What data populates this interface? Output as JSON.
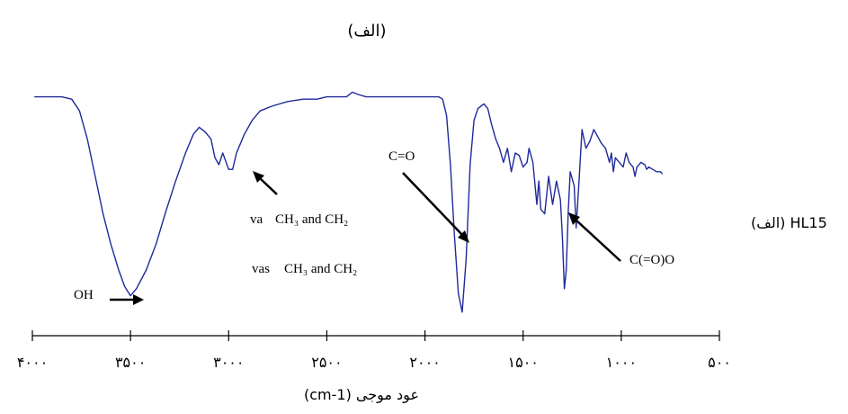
{
  "chart_data": {
    "type": "line",
    "title": "(الف)",
    "side_label": "(الف) HL15",
    "xlabel": "عود موجی (cm-1)",
    "x_ticks": [
      4000,
      3500,
      3000,
      2500,
      2000,
      1500,
      1000,
      500
    ],
    "x_tick_labels": [
      "۴۰۰۰",
      "۳۵۰۰",
      "۳۰۰۰",
      "۲۵۰۰",
      "۲۰۰۰",
      "۱۵۰۰",
      "۱۰۰۰",
      "۵۰۰"
    ],
    "xlim": [
      4000,
      500
    ],
    "x_reversed": true,
    "ylim": [
      0,
      100
    ],
    "y_axis_shown": false,
    "grid": false,
    "line_color": "#1f2a9a",
    "series": [
      {
        "name": "",
        "points": [
          [
            3990,
            94
          ],
          [
            3900,
            94
          ],
          [
            3850,
            94
          ],
          [
            3800,
            93
          ],
          [
            3760,
            88
          ],
          [
            3720,
            76
          ],
          [
            3680,
            60
          ],
          [
            3640,
            44
          ],
          [
            3600,
            31
          ],
          [
            3560,
            20
          ],
          [
            3530,
            13
          ],
          [
            3500,
            9
          ],
          [
            3470,
            12
          ],
          [
            3420,
            20
          ],
          [
            3370,
            31
          ],
          [
            3320,
            45
          ],
          [
            3270,
            58
          ],
          [
            3220,
            70
          ],
          [
            3180,
            78
          ],
          [
            3150,
            81
          ],
          [
            3120,
            79
          ],
          [
            3090,
            76
          ],
          [
            3070,
            68
          ],
          [
            3050,
            65
          ],
          [
            3030,
            70
          ],
          [
            3000,
            63
          ],
          [
            2980,
            63
          ],
          [
            2960,
            70
          ],
          [
            2920,
            78
          ],
          [
            2880,
            84
          ],
          [
            2840,
            88
          ],
          [
            2780,
            90
          ],
          [
            2700,
            92
          ],
          [
            2620,
            93
          ],
          [
            2550,
            93
          ],
          [
            2500,
            94
          ],
          [
            2440,
            94
          ],
          [
            2400,
            94
          ],
          [
            2370,
            96
          ],
          [
            2340,
            95
          ],
          [
            2300,
            94
          ],
          [
            2200,
            94
          ],
          [
            2100,
            94
          ],
          [
            2000,
            94
          ],
          [
            1930,
            94
          ],
          [
            1910,
            93
          ],
          [
            1890,
            86
          ],
          [
            1870,
            65
          ],
          [
            1850,
            35
          ],
          [
            1830,
            10
          ],
          [
            1810,
            2
          ],
          [
            1790,
            25
          ],
          [
            1770,
            65
          ],
          [
            1750,
            84
          ],
          [
            1730,
            89
          ],
          [
            1700,
            91
          ],
          [
            1680,
            89
          ],
          [
            1660,
            82
          ],
          [
            1640,
            76
          ],
          [
            1620,
            72
          ],
          [
            1600,
            66
          ],
          [
            1580,
            72
          ],
          [
            1560,
            62
          ],
          [
            1540,
            70
          ],
          [
            1520,
            69
          ],
          [
            1500,
            64
          ],
          [
            1480,
            66
          ],
          [
            1470,
            72
          ],
          [
            1450,
            66
          ],
          [
            1430,
            48
          ],
          [
            1420,
            58
          ],
          [
            1410,
            46
          ],
          [
            1390,
            44
          ],
          [
            1370,
            60
          ],
          [
            1350,
            48
          ],
          [
            1330,
            58
          ],
          [
            1310,
            50
          ],
          [
            1300,
            34
          ],
          [
            1290,
            12
          ],
          [
            1280,
            20
          ],
          [
            1270,
            45
          ],
          [
            1260,
            62
          ],
          [
            1240,
            56
          ],
          [
            1230,
            38
          ],
          [
            1215,
            58
          ],
          [
            1200,
            80
          ],
          [
            1180,
            72
          ],
          [
            1160,
            75
          ],
          [
            1140,
            80
          ],
          [
            1120,
            77
          ],
          [
            1100,
            74
          ],
          [
            1080,
            72
          ],
          [
            1060,
            66
          ],
          [
            1050,
            70
          ],
          [
            1040,
            62
          ],
          [
            1030,
            68
          ],
          [
            1010,
            66
          ],
          [
            990,
            64
          ],
          [
            975,
            70
          ],
          [
            960,
            66
          ],
          [
            940,
            64
          ],
          [
            930,
            60
          ],
          [
            920,
            64
          ],
          [
            900,
            66
          ],
          [
            880,
            65
          ],
          [
            870,
            63
          ],
          [
            860,
            64
          ],
          [
            840,
            63
          ],
          [
            820,
            62
          ],
          [
            800,
            62
          ],
          [
            790,
            61
          ]
        ]
      }
    ],
    "annotations": [
      {
        "text": "OH",
        "x": 3600,
        "y": 16
      },
      {
        "text": "C=O",
        "x": 2090,
        "y": 84
      },
      {
        "text": "C(=O)O",
        "x": 1000,
        "y": 27
      },
      {
        "text": "CH₃ and CH₂",
        "x": 3000,
        "y": 50,
        "prefix": "va"
      },
      {
        "text": "CH₃ and CH₂",
        "x": 3000,
        "y": 23,
        "prefix": "vas"
      }
    ]
  }
}
